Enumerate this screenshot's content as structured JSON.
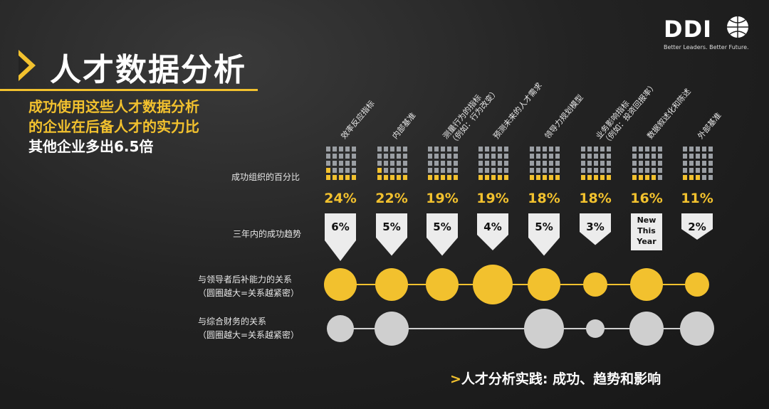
{
  "header": {
    "title": "人才数据分析",
    "subtitle_lines": [
      "成功使用这些人才数据分析",
      "的企业在后备人才的实力比",
      "其他企业多出6.5倍"
    ]
  },
  "logo": {
    "text": "DDI",
    "tagline": "Better Leaders. Better Future."
  },
  "row_labels": {
    "percent": "成功组织的百分比",
    "trend": "三年内的成功趋势",
    "leader_line1": "与领导者后补能力的关系",
    "leader_line2": "（圆圈越大=关系越紧密）",
    "finance_line1": "与综合财务的关系",
    "finance_line2": "（圆圈越大=关系越紧密）"
  },
  "footer": {
    "arrow": ">",
    "text": "人才分析实践: 成功、趋势和影响"
  },
  "colors": {
    "accent": "#f2c12e",
    "grid": "#9a9ea3",
    "gray_circle": "#cfcfcf"
  },
  "chart_data": {
    "type": "table",
    "categories": [
      [
        "效率反应指标"
      ],
      [
        "内部基准"
      ],
      [
        "测量行为的指标",
        "（例如：行为改变）"
      ],
      [
        "预测未来的人才需求"
      ],
      [
        "领导力规划模型"
      ],
      [
        "业务影响指标",
        "（例如：投资回报率）"
      ],
      [
        "数据叙述化和陈述"
      ],
      [
        "外部基准"
      ]
    ],
    "success_percent": [
      24,
      22,
      19,
      19,
      18,
      18,
      16,
      11
    ],
    "success_percent_labels": [
      "24%",
      "22%",
      "19%",
      "19%",
      "18%",
      "18%",
      "16%",
      "11%"
    ],
    "trend_labels": [
      "6%",
      "5%",
      "5%",
      "4%",
      "5%",
      "3%",
      "New This Year",
      "2%"
    ],
    "trend_values": [
      6,
      5,
      5,
      4,
      5,
      3,
      null,
      2
    ],
    "leadership_relation": [
      3,
      3,
      3,
      4,
      3,
      2,
      3,
      2
    ],
    "financial_relation": [
      2,
      3,
      null,
      null,
      4,
      1,
      3,
      3
    ]
  }
}
